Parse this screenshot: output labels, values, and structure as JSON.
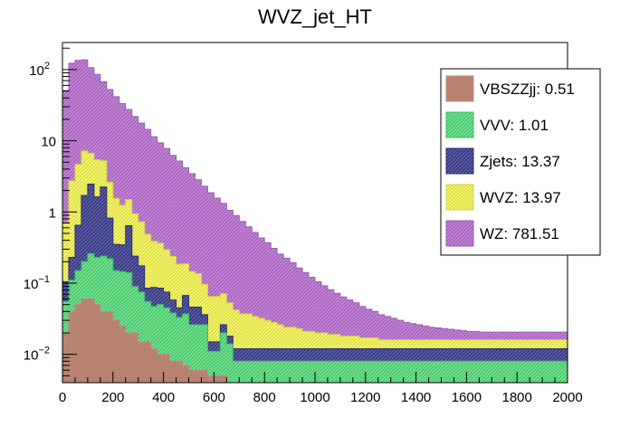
{
  "chart_data": {
    "type": "bar",
    "stacked": true,
    "histogram": true,
    "title": "WVZ_jet_HT",
    "xlabel": "",
    "ylabel": "",
    "xlim": [
      0,
      2000
    ],
    "ylim": [
      0.004,
      240
    ],
    "yscale": "log",
    "bin_width": 25,
    "x_ticks": [
      0,
      200,
      400,
      600,
      800,
      1000,
      1200,
      1400,
      1600,
      1800,
      2000
    ],
    "x_tick_labels": [
      "0",
      "200",
      "400",
      "600",
      "800",
      "1000",
      "1200",
      "1400",
      "1600",
      "1800",
      "2000"
    ],
    "y_tick_labels": [
      {
        "value": 0.01,
        "base": "10",
        "exp": "−2"
      },
      {
        "value": 0.1,
        "base": "10",
        "exp": "−1"
      },
      {
        "value": 1,
        "base": "1",
        "exp": ""
      },
      {
        "value": 10,
        "base": "10",
        "exp": ""
      },
      {
        "value": 100,
        "base": "10",
        "exp": "2"
      }
    ],
    "legend_position": "top-right",
    "legend": [
      {
        "label": "VBSZZjj: 0.51",
        "series": "VBSZZjj"
      },
      {
        "label": "VVV: 1.01",
        "series": "VVV"
      },
      {
        "label": "Zjets: 13.37",
        "series": "Zjets"
      },
      {
        "label": "WVZ: 13.97",
        "series": "WVZ"
      },
      {
        "label": "WZ: 781.51",
        "series": "WZ"
      }
    ],
    "series": [
      {
        "name": "VBSZZjj",
        "color": "#b07f66",
        "hatch": "#c38a83",
        "values": [
          0.02,
          0.04,
          0.05,
          0.06,
          0.06,
          0.05,
          0.04,
          0.04,
          0.03,
          0.025,
          0.02,
          0.02,
          0.015,
          0.015,
          0.012,
          0.01,
          0.01,
          0.008,
          0.008,
          0.007,
          0.006,
          0.006,
          0.006,
          0.005,
          0.005,
          0.005,
          0.004,
          0.004,
          0.004,
          0.004,
          0.004,
          0.004,
          0.004,
          0.004,
          0.004,
          0.004,
          0.004,
          0.004,
          0.004,
          0.004,
          0.004,
          0.004,
          0.004,
          0.004,
          0.004,
          0.004,
          0.004,
          0.004,
          0.004,
          0.004,
          0.004,
          0.004,
          0.004,
          0.004,
          0.004,
          0.004,
          0.004,
          0.004,
          0.004,
          0.004,
          0.004,
          0.004,
          0.004,
          0.004,
          0.004,
          0.004,
          0.004,
          0.004,
          0.004,
          0.004,
          0.004,
          0.004,
          0.004,
          0.004,
          0.004,
          0.004,
          0.004,
          0.004,
          0.004,
          0.004
        ]
      },
      {
        "name": "VVV",
        "color": "#73e08c",
        "hatch": "#3fbe68",
        "values": [
          0.035,
          0.07,
          0.1,
          0.14,
          0.2,
          0.18,
          0.2,
          0.18,
          0.12,
          0.12,
          0.12,
          0.07,
          0.06,
          0.04,
          0.035,
          0.04,
          0.035,
          0.03,
          0.025,
          0.03,
          0.02,
          0.02,
          0.02,
          0.006,
          0.006,
          0.015,
          0.01,
          0.004,
          0.004,
          0.004,
          0.004,
          0.004,
          0.004,
          0.004,
          0.004,
          0.004,
          0.004,
          0.004,
          0.004,
          0.004,
          0.004,
          0.004,
          0.004,
          0.004,
          0.004,
          0.004,
          0.004,
          0.004,
          0.004,
          0.004,
          0.004,
          0.004,
          0.004,
          0.004,
          0.004,
          0.004,
          0.004,
          0.004,
          0.004,
          0.004,
          0.004,
          0.004,
          0.004,
          0.004,
          0.004,
          0.004,
          0.004,
          0.004,
          0.004,
          0.004,
          0.004,
          0.004,
          0.004,
          0.004,
          0.004,
          0.004,
          0.004,
          0.004,
          0.004,
          0.004
        ]
      },
      {
        "name": "Zjets",
        "color": "#5b5ca8",
        "hatch": "#2c2d6e",
        "values": [
          0.05,
          0.12,
          0.5,
          1.5,
          2.2,
          1.4,
          2.0,
          0.6,
          0.2,
          0.2,
          0.5,
          0.15,
          0.1,
          0.03,
          0.04,
          0.035,
          0.03,
          0.02,
          0.012,
          0.03,
          0.02,
          0.02,
          0.01,
          0.004,
          0.004,
          0.006,
          0.004,
          0.004,
          0.004,
          0.004,
          0.004,
          0.004,
          0.004,
          0.004,
          0.004,
          0.004,
          0.004,
          0.004,
          0.004,
          0.004,
          0.004,
          0.004,
          0.004,
          0.004,
          0.004,
          0.004,
          0.004,
          0.004,
          0.004,
          0.004,
          0.004,
          0.004,
          0.004,
          0.004,
          0.004,
          0.004,
          0.004,
          0.004,
          0.004,
          0.004,
          0.004,
          0.004,
          0.004,
          0.004,
          0.004,
          0.004,
          0.004,
          0.004,
          0.004,
          0.004,
          0.004,
          0.004,
          0.004,
          0.004,
          0.004,
          0.004,
          0.004,
          0.004,
          0.004,
          0.004
        ]
      },
      {
        "name": "WVZ",
        "color": "#f5f56e",
        "hatch": "#d6d640",
        "values": [
          0.6,
          2.5,
          4.0,
          5.5,
          4.2,
          3.8,
          3.0,
          1.8,
          1.2,
          0.9,
          0.85,
          0.7,
          0.55,
          0.4,
          0.3,
          0.28,
          0.22,
          0.18,
          0.14,
          0.12,
          0.1,
          0.09,
          0.06,
          0.05,
          0.05,
          0.045,
          0.035,
          0.03,
          0.025,
          0.025,
          0.022,
          0.02,
          0.018,
          0.016,
          0.014,
          0.012,
          0.012,
          0.011,
          0.009,
          0.009,
          0.008,
          0.008,
          0.007,
          0.007,
          0.006,
          0.006,
          0.006,
          0.005,
          0.005,
          0.005,
          0.004,
          0.004,
          0.004,
          0.004,
          0.004,
          0.004,
          0.004,
          0.004,
          0.004,
          0.004,
          0.004,
          0.004,
          0.004,
          0.004,
          0.004,
          0.004,
          0.004,
          0.004,
          0.004,
          0.004,
          0.004,
          0.004,
          0.004,
          0.004,
          0.004,
          0.004,
          0.004,
          0.004,
          0.004,
          0.004
        ]
      },
      {
        "name": "WZ",
        "color": "#c384d6",
        "hatch": "#9c5cb5",
        "values": [
          50,
          120,
          130,
          130,
          100,
          80,
          62,
          50,
          40,
          32,
          26,
          21,
          17,
          14,
          11,
          9,
          7.5,
          6,
          5,
          4,
          3.3,
          2.7,
          2.2,
          1.8,
          1.5,
          1.25,
          1.0,
          0.85,
          0.7,
          0.58,
          0.48,
          0.4,
          0.34,
          0.28,
          0.23,
          0.2,
          0.17,
          0.14,
          0.12,
          0.1,
          0.085,
          0.072,
          0.062,
          0.053,
          0.046,
          0.04,
          0.035,
          0.03,
          0.026,
          0.023,
          0.02,
          0.018,
          0.016,
          0.014,
          0.012,
          0.011,
          0.01,
          0.009,
          0.008,
          0.0075,
          0.007,
          0.0065,
          0.006,
          0.0055,
          0.005,
          0.005,
          0.0045,
          0.0045,
          0.0045,
          0.0045,
          0.0045,
          0.0045,
          0.0045,
          0.0045,
          0.0045,
          0.0045,
          0.0045,
          0.0045,
          0.0045,
          0.0045
        ]
      }
    ]
  }
}
